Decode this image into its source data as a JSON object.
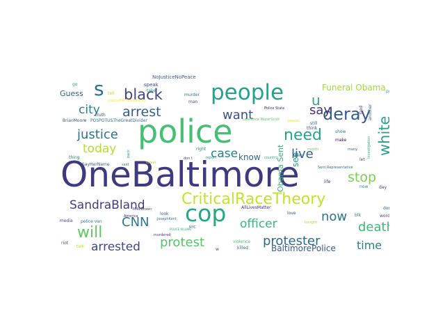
{
  "words": [
    {
      "text": "OneBaltimore",
      "color": "#3e3a82"
    },
    {
      "text": "police",
      "color": "#46be74"
    },
    {
      "text": "people",
      "color": "#25a28b"
    },
    {
      "text": "cop",
      "color": "#26a785"
    },
    {
      "text": "CriticalRaceTheory",
      "color": "#c8e02a"
    },
    {
      "text": "s",
      "color": "#2f6e8e"
    },
    {
      "text": "u",
      "color": "#33a28a"
    },
    {
      "text": "deray",
      "color": "#37598c"
    },
    {
      "text": "black",
      "color": "#414487"
    },
    {
      "text": "white",
      "color": "#2ea08b"
    },
    {
      "text": "arrest",
      "color": "#355f8d"
    },
    {
      "text": "need",
      "color": "#22a884"
    },
    {
      "text": "city",
      "color": "#277f8e"
    },
    {
      "text": "say",
      "color": "#45337d"
    },
    {
      "text": "want",
      "color": "#3b528b"
    },
    {
      "text": "justice",
      "color": "#2c728e"
    },
    {
      "text": "today",
      "color": "#b5de2b"
    },
    {
      "text": "live",
      "color": "#355e8d"
    },
    {
      "text": "case",
      "color": "#277e8e"
    },
    {
      "text": "stop",
      "color": "#7ad151"
    },
    {
      "text": "SandraBland",
      "color": "#443a83"
    },
    {
      "text": "CNN",
      "color": "#2a768e"
    },
    {
      "text": "will",
      "color": "#5ec962"
    },
    {
      "text": "officer",
      "color": "#35b779"
    },
    {
      "text": "now",
      "color": "#2c728e"
    },
    {
      "text": "death",
      "color": "#3bbb75"
    },
    {
      "text": "protest",
      "color": "#54c568"
    },
    {
      "text": "arrested",
      "color": "#3f4788"
    },
    {
      "text": "protester",
      "color": "#31688e"
    },
    {
      "text": "time",
      "color": "#26828e"
    },
    {
      "text": "BaltimorePolice",
      "color": "#38598c"
    },
    {
      "text": "know",
      "color": "#34618d"
    },
    {
      "text": "Obama Sent",
      "color": "#2fb47c"
    },
    {
      "text": "see",
      "color": "#1fa187"
    },
    {
      "text": "Funeral Obama",
      "color": "#a0da39"
    },
    {
      "text": "Guess",
      "color": "#33628d"
    },
    {
      "text": "speak",
      "color": "#3e4989"
    },
    {
      "text": "NoJusticeNoPeace",
      "color": "#365c8d"
    },
    {
      "text": "go",
      "color": "#1e9b8a"
    },
    {
      "text": "tell",
      "color": "#c0df25"
    },
    {
      "text": "JusticeForFreddieGray",
      "color": "#fde725"
    },
    {
      "text": "truth",
      "color": "#3d4e8a"
    },
    {
      "text": "man",
      "color": "#39568c"
    },
    {
      "text": "murder",
      "color": "#2d708e"
    },
    {
      "text": "take",
      "color": "#21918c"
    },
    {
      "text": "power",
      "color": "#21a685"
    },
    {
      "text": "BrianMoore",
      "color": "#3b528b"
    },
    {
      "text": "POSPOTUSTheGreatDivider",
      "color": "#2c728e"
    },
    {
      "text": "Police State",
      "color": "#481f70"
    },
    {
      "text": "Lawrence WaterScott",
      "color": "#5ec962"
    },
    {
      "text": "peace",
      "color": "#e5e419"
    },
    {
      "text": "still",
      "color": "#31688e"
    },
    {
      "text": "God",
      "color": "#482475"
    },
    {
      "text": "another",
      "color": "#2e6d8e"
    },
    {
      "text": "think",
      "color": "#3b528b"
    },
    {
      "text": "show",
      "color": "#287c8e"
    },
    {
      "text": "make",
      "color": "#440154"
    },
    {
      "text": "investigation",
      "color": "#2db27d"
    },
    {
      "text": "thing",
      "color": "#2a788e"
    },
    {
      "text": "back",
      "color": "#1f988b"
    },
    {
      "text": "street",
      "color": "#b5de2b"
    },
    {
      "text": "right",
      "color": "#26828e"
    },
    {
      "text": "don t",
      "color": "#3f4889"
    },
    {
      "text": "report",
      "color": "#20a486"
    },
    {
      "text": "video",
      "color": "#2c738e"
    },
    {
      "text": "month",
      "color": "#6ccd5a"
    },
    {
      "text": "many",
      "color": "#31688e"
    },
    {
      "text": "SayHerName",
      "color": "#365d8d"
    },
    {
      "text": "said",
      "color": "#2a788e"
    },
    {
      "text": "country",
      "color": "#27ad81"
    },
    {
      "text": "let",
      "color": "#3b528b"
    },
    {
      "text": "Sent Representative",
      "color": "#2c728e"
    },
    {
      "text": "life",
      "color": "#46327e"
    },
    {
      "text": "now",
      "color": "#20928c"
    },
    {
      "text": "day",
      "color": "#404688"
    },
    {
      "text": "dont",
      "color": "#34618d"
    },
    {
      "text": "blk",
      "color": "#26818e"
    },
    {
      "text": "word",
      "color": "#433e85"
    },
    {
      "text": "MikeBrown",
      "color": "#3e4c8a"
    },
    {
      "text": "look",
      "color": "#355f8d"
    },
    {
      "text": "AllLivesMatter",
      "color": "#472c7a"
    },
    {
      "text": "love",
      "color": "#38588c"
    },
    {
      "text": "tonight",
      "color": "#a8db34"
    },
    {
      "text": "JosephKent",
      "color": "#2f6c8e"
    },
    {
      "text": "media",
      "color": "#3f4788"
    },
    {
      "text": "police van",
      "color": "#2b758e"
    },
    {
      "text": "America",
      "color": "#482979"
    },
    {
      "text": "POLICE KILLING",
      "color": "#26ad81"
    },
    {
      "text": "murdered",
      "color": "#423f85"
    },
    {
      "text": "violence",
      "color": "#4ac16d"
    },
    {
      "text": "riot",
      "color": "#3d4d8a"
    },
    {
      "text": "talk",
      "color": "#c2df23"
    },
    {
      "text": "killed",
      "color": "#2f6b8e"
    },
    {
      "text": "NYC",
      "color": "#34608d"
    },
    {
      "text": "w",
      "color": "#3e4989"
    }
  ]
}
